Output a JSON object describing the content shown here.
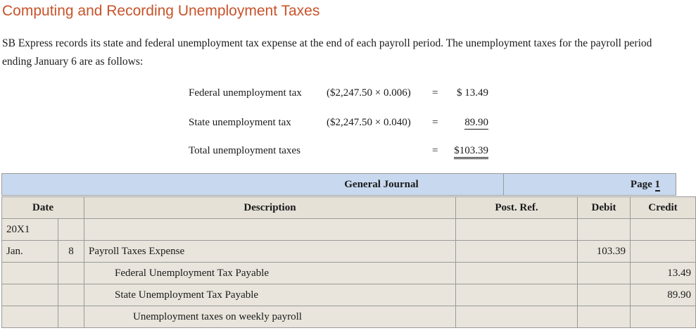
{
  "title": "Computing and Recording Unemployment Taxes",
  "intro": "SB Express records its state and federal unemployment tax expense at the end of each payroll period. The unemployment taxes for the payroll period ending January 6 are as follows:",
  "calculations": [
    {
      "label": "Federal unemployment tax",
      "formula": "($2,247.50 × 0.006)",
      "eq": "=",
      "value": "$ 13.49"
    },
    {
      "label": "State unemployment tax",
      "formula": "($2,247.50 × 0.040)",
      "eq": "=",
      "value": "89.90"
    },
    {
      "label": "Total unemployment taxes",
      "formula": "",
      "eq": "=",
      "value": "$103.39"
    }
  ],
  "journal": {
    "title": "General Journal",
    "page_label": "Page",
    "page_number": "1",
    "columns": {
      "date": "Date",
      "description": "Description",
      "post_ref": "Post. Ref.",
      "debit": "Debit",
      "credit": "Credit"
    },
    "rows": [
      {
        "month": "20X1",
        "day": "",
        "description": "",
        "post_ref": "",
        "debit": "",
        "credit": ""
      },
      {
        "month": "Jan.",
        "day": "8",
        "description": "Payroll Taxes Expense",
        "post_ref": "",
        "debit": "103.39",
        "credit": ""
      },
      {
        "month": "",
        "day": "",
        "description": "Federal Unemployment Tax Payable",
        "post_ref": "",
        "debit": "",
        "credit": "13.49"
      },
      {
        "month": "",
        "day": "",
        "description": "State Unemployment Tax Payable",
        "post_ref": "",
        "debit": "",
        "credit": "89.90"
      },
      {
        "month": "",
        "day": "",
        "description": "Unemployment taxes on weekly payroll",
        "post_ref": "",
        "debit": "",
        "credit": ""
      }
    ]
  }
}
